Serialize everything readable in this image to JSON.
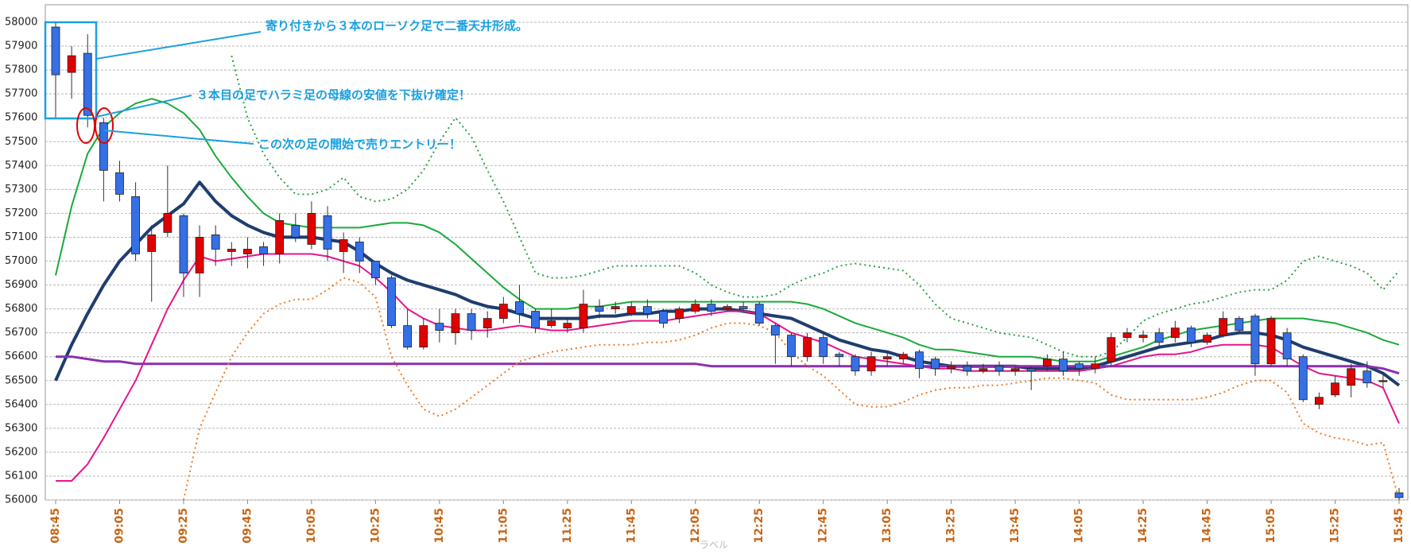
{
  "chart_data": {
    "type": "candlestick",
    "categories": [
      "08:45",
      null,
      null,
      null,
      "09:05",
      null,
      null,
      null,
      "09:25",
      null,
      null,
      null,
      "09:45",
      null,
      null,
      null,
      "10:05",
      null,
      null,
      null,
      "10:25",
      null,
      null,
      null,
      "10:45",
      null,
      null,
      null,
      "11:05",
      null,
      null,
      null,
      "11:25",
      null,
      null,
      null,
      "11:45",
      null,
      null,
      null,
      "12:05",
      null,
      null,
      null,
      "12:25",
      null,
      null,
      null,
      "12:45",
      null,
      null,
      null,
      "13:05",
      null,
      null,
      null,
      "13:25",
      null,
      null,
      null,
      "13:45",
      null,
      null,
      null,
      "14:05",
      null,
      null,
      null,
      "14:25",
      null,
      null,
      null,
      "14:45",
      null,
      null,
      null,
      "15:05",
      null,
      null,
      null,
      "15:25",
      null,
      null,
      null,
      "15:45"
    ],
    "candles": {
      "open": [
        57980,
        57790,
        57870,
        57580,
        57370,
        57270,
        57040,
        57120,
        57190,
        56950,
        57110,
        57040,
        57030,
        57060,
        57030,
        57150,
        57070,
        57190,
        57040,
        57080,
        57000,
        56930,
        56730,
        56640,
        56740,
        56700,
        56780,
        56720,
        56760,
        56830,
        56790,
        56730,
        56720,
        56720,
        56810,
        56800,
        56780,
        56810,
        56790,
        56760,
        56790,
        56820,
        56800,
        56810,
        56820,
        56730,
        56690,
        56600,
        56680,
        56610,
        56600,
        56540,
        56590,
        56590,
        56620,
        56590,
        56550,
        56560,
        56540,
        56560,
        56540,
        56550,
        56560,
        56590,
        56570,
        56550,
        56580,
        56680,
        56680,
        56700,
        56680,
        56720,
        56660,
        56690,
        56760,
        56770,
        56570,
        56700,
        56600,
        56400,
        56440,
        56480,
        56540,
        56500,
        56030
      ],
      "high": [
        58000,
        57900,
        57950,
        57600,
        57420,
        57330,
        57150,
        57400,
        57200,
        57150,
        57150,
        57080,
        57100,
        57080,
        57200,
        57200,
        57250,
        57230,
        57120,
        57100,
        57000,
        56940,
        56800,
        56760,
        56800,
        56800,
        56800,
        56790,
        56850,
        56900,
        56800,
        56800,
        56760,
        56880,
        56840,
        56830,
        56830,
        56840,
        56800,
        56810,
        56840,
        56840,
        56820,
        56830,
        56830,
        56740,
        56700,
        56700,
        56700,
        56620,
        56610,
        56620,
        56620,
        56620,
        56630,
        56600,
        56580,
        56580,
        56570,
        56580,
        56560,
        56560,
        56610,
        56620,
        56580,
        56600,
        56700,
        56720,
        56710,
        56720,
        56750,
        56730,
        56700,
        56790,
        56770,
        56780,
        56770,
        56720,
        56610,
        56450,
        56520,
        56570,
        56580,
        56530,
        56050
      ],
      "low": [
        57600,
        57680,
        57560,
        57250,
        57250,
        57000,
        56830,
        57100,
        56850,
        56850,
        56980,
        56980,
        56970,
        56980,
        56990,
        57080,
        57050,
        57000,
        56950,
        56950,
        56900,
        56720,
        56630,
        56630,
        56660,
        56650,
        56670,
        56680,
        56740,
        56740,
        56700,
        56720,
        56700,
        56700,
        56760,
        56780,
        56770,
        56760,
        56720,
        56740,
        56780,
        56770,
        56790,
        56790,
        56730,
        56570,
        56560,
        56580,
        56570,
        56560,
        56520,
        56520,
        56560,
        56570,
        56510,
        56520,
        56530,
        56520,
        56530,
        56520,
        56520,
        56460,
        56540,
        56520,
        56520,
        56530,
        56560,
        56660,
        56660,
        56640,
        56660,
        56640,
        56650,
        56680,
        56700,
        56520,
        56560,
        56560,
        56410,
        56380,
        56430,
        56430,
        56470,
        56470,
        56000
      ],
      "close": [
        57780,
        57860,
        57610,
        57380,
        57280,
        57030,
        57110,
        57200,
        56950,
        57100,
        57050,
        57050,
        57050,
        57030,
        57170,
        57100,
        57200,
        57050,
        57090,
        57000,
        56930,
        56730,
        56640,
        56730,
        56710,
        56780,
        56710,
        56760,
        56820,
        56780,
        56720,
        56750,
        56740,
        56820,
        56790,
        56810,
        56810,
        56780,
        56740,
        56800,
        56820,
        56790,
        56810,
        56800,
        56740,
        56690,
        56600,
        56680,
        56600,
        56600,
        56540,
        56600,
        56600,
        56610,
        56550,
        56550,
        56560,
        56540,
        56550,
        56540,
        56550,
        56540,
        56590,
        56540,
        56550,
        56570,
        56680,
        56700,
        56690,
        56660,
        56720,
        56660,
        56690,
        56760,
        56710,
        56570,
        56760,
        56590,
        56420,
        56430,
        56490,
        56550,
        56490,
        56500,
        56010
      ],
      "up_color": "#e00000",
      "down_color": "#3570e6"
    },
    "series": [
      {
        "color": "#1f3d6e",
        "style": "solid",
        "width": 4,
        "values": [
          56500,
          56650,
          56780,
          56900,
          57000,
          57070,
          57140,
          57190,
          57240,
          57330,
          57250,
          57190,
          57150,
          57120,
          57100,
          57100,
          57100,
          57090,
          57080,
          57040,
          56990,
          56950,
          56920,
          56900,
          56880,
          56860,
          56830,
          56810,
          56800,
          56780,
          56760,
          56760,
          56760,
          56760,
          56770,
          56770,
          56780,
          56780,
          56790,
          56790,
          56800,
          56800,
          56800,
          56790,
          56780,
          56770,
          56760,
          56730,
          56700,
          56670,
          56650,
          56630,
          56620,
          56600,
          56580,
          56570,
          56560,
          56560,
          56560,
          56560,
          56560,
          56550,
          56550,
          56550,
          56550,
          56560,
          56580,
          56600,
          56620,
          56640,
          56650,
          56660,
          56670,
          56690,
          56700,
          56700,
          56690,
          56670,
          56640,
          56620,
          56600,
          56580,
          56560,
          56530,
          56480
        ]
      },
      {
        "color": "#e6158c",
        "style": "solid",
        "width": 2,
        "values": [
          56080,
          56080,
          56150,
          56260,
          56380,
          56500,
          56650,
          56800,
          56920,
          57020,
          57000,
          57010,
          57020,
          57030,
          57030,
          57030,
          57030,
          57020,
          57000,
          56980,
          56930,
          56870,
          56800,
          56760,
          56730,
          56720,
          56710,
          56710,
          56720,
          56730,
          56720,
          56710,
          56710,
          56720,
          56730,
          56740,
          56750,
          56750,
          56750,
          56760,
          56770,
          56780,
          56790,
          56790,
          56780,
          56740,
          56700,
          56680,
          56660,
          56630,
          56600,
          56590,
          56580,
          56570,
          56560,
          56550,
          56550,
          56540,
          56540,
          56540,
          56540,
          56540,
          56540,
          56540,
          56540,
          56550,
          56560,
          56580,
          56600,
          56610,
          56610,
          56620,
          56640,
          56650,
          56650,
          56650,
          56640,
          56600,
          56560,
          56530,
          56520,
          56510,
          56500,
          56470,
          56320
        ]
      },
      {
        "color": "#1aaa3a",
        "style": "solid",
        "width": 2,
        "values": [
          56940,
          57230,
          57450,
          57560,
          57620,
          57660,
          57680,
          57660,
          57620,
          57550,
          57440,
          57350,
          57270,
          57200,
          57160,
          57150,
          57140,
          57140,
          57140,
          57140,
          57150,
          57160,
          57160,
          57150,
          57120,
          57070,
          57010,
          56950,
          56890,
          56840,
          56800,
          56800,
          56800,
          56810,
          56810,
          56820,
          56830,
          56830,
          56830,
          56830,
          56830,
          56830,
          56830,
          56830,
          56830,
          56830,
          56830,
          56820,
          56800,
          56770,
          56740,
          56720,
          56700,
          56680,
          56650,
          56630,
          56630,
          56620,
          56610,
          56600,
          56600,
          56600,
          56590,
          56580,
          56580,
          56580,
          56600,
          56620,
          56640,
          56670,
          56690,
          56710,
          56720,
          56730,
          56740,
          56750,
          56760,
          56760,
          56760,
          56750,
          56740,
          56720,
          56700,
          56670,
          56650
        ]
      },
      {
        "color": "#8a2fb0",
        "style": "solid",
        "width": 3,
        "values": [
          56600,
          56600,
          56590,
          56580,
          56580,
          56570,
          56570,
          56570,
          56570,
          56570,
          56570,
          56570,
          56570,
          56570,
          56570,
          56570,
          56570,
          56570,
          56570,
          56570,
          56570,
          56570,
          56570,
          56570,
          56570,
          56570,
          56570,
          56570,
          56570,
          56570,
          56570,
          56570,
          56570,
          56570,
          56570,
          56570,
          56570,
          56570,
          56570,
          56570,
          56570,
          56560,
          56560,
          56560,
          56560,
          56560,
          56560,
          56560,
          56560,
          56560,
          56560,
          56560,
          56560,
          56560,
          56560,
          56560,
          56560,
          56560,
          56560,
          56560,
          56560,
          56560,
          56560,
          56560,
          56560,
          56560,
          56560,
          56560,
          56560,
          56560,
          56560,
          56560,
          56560,
          56560,
          56560,
          56560,
          56560,
          56560,
          56560,
          56560,
          56560,
          56560,
          56560,
          56550,
          56530
        ]
      },
      {
        "color": "#2aa040",
        "style": "dotted",
        "width": 2,
        "values": [
          null,
          null,
          null,
          null,
          null,
          null,
          null,
          null,
          null,
          null,
          null,
          57860,
          57600,
          57450,
          57350,
          57280,
          57280,
          57300,
          57350,
          57270,
          57250,
          57260,
          57300,
          57380,
          57500,
          57600,
          57520,
          57380,
          57250,
          57100,
          56950,
          56930,
          56930,
          56940,
          56960,
          56980,
          56980,
          56980,
          56980,
          56980,
          56950,
          56900,
          56870,
          56850,
          56850,
          56860,
          56900,
          56930,
          56950,
          56980,
          56990,
          56980,
          56970,
          56960,
          56900,
          56820,
          56760,
          56740,
          56720,
          56700,
          56690,
          56680,
          56650,
          56620,
          56600,
          56600,
          56620,
          56680,
          56750,
          56780,
          56800,
          56820,
          56830,
          56850,
          56870,
          56880,
          56880,
          56920,
          57000,
          57020,
          57000,
          56980,
          56950,
          56880,
          56960
        ]
      },
      {
        "color": "#f07820",
        "style": "dotted",
        "width": 2,
        "values": [
          null,
          null,
          null,
          null,
          null,
          null,
          null,
          null,
          56000,
          56300,
          56450,
          56600,
          56700,
          56780,
          56820,
          56840,
          56840,
          56880,
          56930,
          56910,
          56850,
          56600,
          56480,
          56380,
          56350,
          56380,
          56430,
          56480,
          56530,
          56580,
          56600,
          56620,
          56630,
          56640,
          56650,
          56650,
          56650,
          56660,
          56660,
          56670,
          56690,
          56720,
          56740,
          56740,
          56730,
          56700,
          56620,
          56560,
          56520,
          56460,
          56400,
          56390,
          56390,
          56410,
          56440,
          56460,
          56470,
          56470,
          56480,
          56480,
          56490,
          56500,
          56510,
          56510,
          56500,
          56490,
          56440,
          56420,
          56420,
          56420,
          56420,
          56420,
          56430,
          56450,
          56480,
          56500,
          56500,
          56450,
          56320,
          56280,
          56260,
          56250,
          56230,
          56240,
          56000
        ]
      }
    ],
    "ylim": [
      56000,
      58000
    ],
    "yticks": [
      56000,
      56100,
      56200,
      56300,
      56400,
      56500,
      56600,
      56700,
      56800,
      56900,
      57000,
      57100,
      57200,
      57300,
      57400,
      57500,
      57600,
      57700,
      57800,
      57900,
      58000
    ],
    "grid": true,
    "annotations": [
      "寄り付きから３本のローソク足で二番天井形成。",
      "３本目の足でハラミ足の母線の安値を下抜け確定！",
      "この次の足の開始で売りエントリー！"
    ],
    "watermark": "ラベル"
  }
}
